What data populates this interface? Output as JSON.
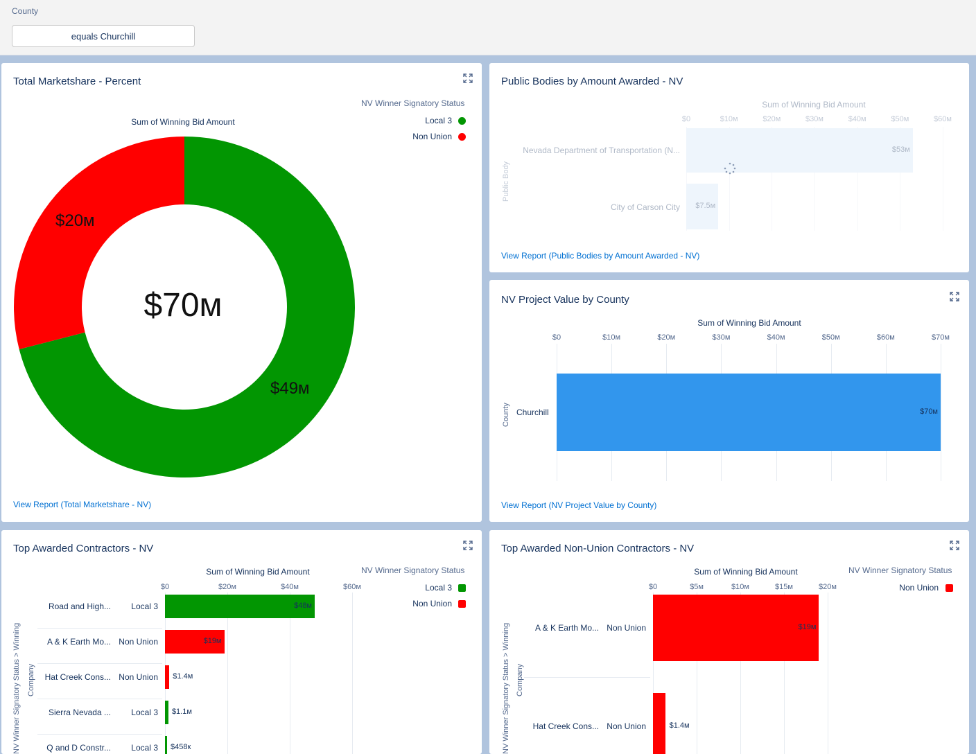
{
  "filter": {
    "label": "County",
    "value": "equals Churchill"
  },
  "colors": {
    "local3": "#029602",
    "non_union": "#ff0000",
    "county_bar": "#3296ed",
    "pb_bar": "#cfe4f8",
    "link": "#0070d2"
  },
  "icons": {
    "expand": "expand-icon",
    "loading": "spinner-icon"
  },
  "card1": {
    "title": "Total Marketshare - Percent",
    "legend_title": "NV Winner Signatory Status",
    "legend": [
      "Local 3",
      "Non Union"
    ],
    "subtitle": "Sum of Winning Bid Amount",
    "center_value": "$70м",
    "slice_labels": [
      "$49м",
      "$20м"
    ],
    "link": "View Report (Total Marketshare - NV)"
  },
  "card2": {
    "title": "Public Bodies by Amount Awarded - NV",
    "axis_title": "Sum of Winning Bid Amount",
    "ticks": [
      "$0",
      "$10м",
      "$20м",
      "$30м",
      "$40м",
      "$50м",
      "$60м"
    ],
    "y_axis_title": "Public Body",
    "rows": [
      {
        "label": "Nevada Department of Transportation (N...",
        "value_label": "$53м"
      },
      {
        "label": "City of Carson City",
        "value_label": "$7.5м"
      }
    ],
    "link": "View Report (Public Bodies by Amount Awarded - NV)"
  },
  "card3": {
    "title": "NV Project Value by County",
    "axis_title": "Sum of Winning Bid Amount",
    "ticks": [
      "$0",
      "$10м",
      "$20м",
      "$30м",
      "$40м",
      "$50м",
      "$60м",
      "$70м"
    ],
    "y_axis_title": "County",
    "rows": [
      {
        "label": "Churchill",
        "value_label": "$70м"
      }
    ],
    "link": "View Report (NV Project Value by County)"
  },
  "card4": {
    "title": "Top Awarded Contractors - NV",
    "axis_title": "Sum of Winning Bid Amount",
    "ticks": [
      "$0",
      "$20м",
      "$40м",
      "$60м"
    ],
    "legend_title": "NV Winner Signatory Status",
    "legend": [
      "Local 3",
      "Non Union"
    ],
    "y_axis_title_1": "NV Winner Signatory Status  >  Winning",
    "y_axis_title_2": "Company",
    "rows": [
      {
        "company": "Road and High...",
        "status": "Local 3",
        "value_label": "$48м"
      },
      {
        "company": "A & K Earth Mo...",
        "status": "Non Union",
        "value_label": "$19м"
      },
      {
        "company": "Hat Creek Cons...",
        "status": "Non Union",
        "value_label": "$1.4м"
      },
      {
        "company": "Sierra Nevada ...",
        "status": "Local 3",
        "value_label": "$1.1м"
      },
      {
        "company": "Q and D Constr...",
        "status": "Local 3",
        "value_label": "$458к"
      }
    ]
  },
  "card5": {
    "title": "Top Awarded Non-Union Contractors - NV",
    "axis_title": "Sum of Winning Bid Amount",
    "ticks": [
      "$0",
      "$5м",
      "$10м",
      "$15м",
      "$20м"
    ],
    "legend_title": "NV Winner Signatory Status",
    "legend": [
      "Non Union"
    ],
    "y_axis_title_1": "NV Winner Signatory Status  >  Winning",
    "y_axis_title_2": "Company",
    "rows": [
      {
        "company": "A & K Earth Mo...",
        "status": "Non Union",
        "value_label": "$19м"
      },
      {
        "company": "Hat Creek Cons...",
        "status": "Non Union",
        "value_label": "$1.4м"
      }
    ]
  },
  "chart_data": [
    {
      "type": "pie",
      "title": "Total Marketshare - Percent",
      "subtitle": "Sum of Winning Bid Amount",
      "categories": [
        "Local 3",
        "Non Union"
      ],
      "values": [
        49,
        20
      ],
      "total": 70
    },
    {
      "type": "bar",
      "title": "Public Bodies by Amount Awarded - NV",
      "xlabel": "Sum of Winning Bid Amount",
      "ylabel": "Public Body",
      "categories": [
        "Nevada Department of Transportation (N...",
        "City of Carson City"
      ],
      "values": [
        53,
        7.5
      ],
      "xlim": [
        0,
        60
      ]
    },
    {
      "type": "bar",
      "title": "NV Project Value by County",
      "xlabel": "Sum of Winning Bid Amount",
      "ylabel": "County",
      "categories": [
        "Churchill"
      ],
      "values": [
        70
      ],
      "xlim": [
        0,
        70
      ]
    },
    {
      "type": "bar",
      "title": "Top Awarded Contractors - NV",
      "xlabel": "Sum of Winning Bid Amount",
      "categories": [
        "Road and High...",
        "A & K Earth Mo...",
        "Hat Creek Cons...",
        "Sierra Nevada ...",
        "Q and D Constr..."
      ],
      "group": [
        "Local 3",
        "Non Union",
        "Non Union",
        "Local 3",
        "Local 3"
      ],
      "values": [
        48,
        19,
        1.4,
        1.1,
        0.458
      ],
      "xlim": [
        0,
        60
      ]
    },
    {
      "type": "bar",
      "title": "Top Awarded Non-Union Contractors - NV",
      "xlabel": "Sum of Winning Bid Amount",
      "categories": [
        "A & K Earth Mo...",
        "Hat Creek Cons..."
      ],
      "group": [
        "Non Union",
        "Non Union"
      ],
      "values": [
        19,
        1.4
      ],
      "xlim": [
        0,
        20
      ]
    }
  ]
}
